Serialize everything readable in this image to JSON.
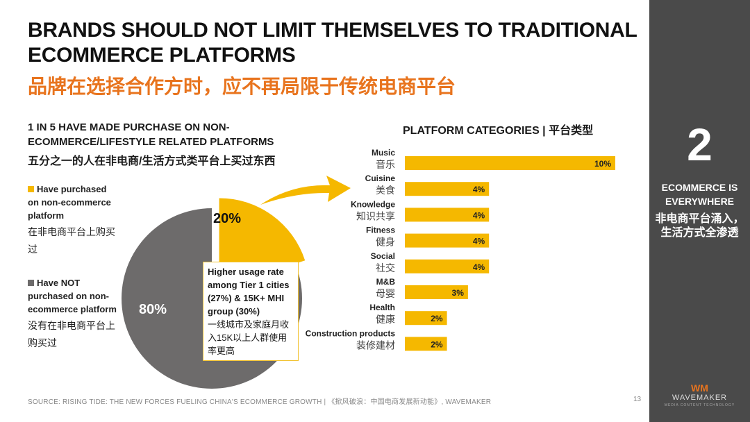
{
  "title": "BRANDS SHOULD NOT LIMIT THEMSELVES TO TRADITIONAL ECOMMERCE PLATFORMS",
  "title_cn": "品牌在选择合作方时，应不再局限于传统电商平台",
  "left": {
    "heading": "1 IN 5 HAVE MADE PURCHASE ON NON-ECOMMERCE/LIFESTYLE RELATED PLATFORMS",
    "heading_cn": "五分之一的人在非电商/生活方式类平台上买过东西",
    "legend": [
      {
        "en": "Have purchased on non-ecommerce platform",
        "cn": "在非电商平台上购买过",
        "color": "#f5b800"
      },
      {
        "en": "Have NOT purchased on non-ecommerce platform",
        "cn": "没有在非电商平台上购买过",
        "color": "#6d6b6b"
      }
    ],
    "callout_en": "Higher usage rate among Tier 1 cities (27%) & 15K+ MHI group (30%)",
    "callout_cn": "一线城市及家庭月收入15K以上人群使用率更高"
  },
  "right": {
    "heading": "PLATFORM CATEGORIES | 平台类型"
  },
  "sidebar": {
    "number": "2",
    "en": "ECOMMERCE IS EVERYWHERE",
    "cn": "非电商平台涌入，生活方式全渗透"
  },
  "logo": {
    "mark": "WM",
    "name": "WAVEMAKER",
    "tagline": "MEDIA  CONTENT  TECHNOLOGY"
  },
  "footer": "SOURCE: RISING TIDE: THE NEW FORCES FUELING CHINA'S ECOMMERCE GROWTH | 《掀风破浪：中国电商发展新动能》, WAVEMAKER",
  "page_number": "13",
  "colors": {
    "accent": "#f5b800",
    "grey": "#6d6b6b",
    "orange_text": "#e8741e",
    "sidebar": "#4a4a4a"
  },
  "chart_data": [
    {
      "type": "pie",
      "categories": [
        "Have purchased on non-ecommerce platform",
        "Have NOT purchased on non-ecommerce platform"
      ],
      "values": [
        20,
        80
      ],
      "labels": [
        "20%",
        "80%"
      ]
    },
    {
      "type": "bar",
      "orientation": "horizontal",
      "categories": [
        "Music",
        "Cuisine",
        "Knowledge",
        "Fitness",
        "Social",
        "M&B",
        "Health",
        "Construction products"
      ],
      "categories_cn": [
        "音乐",
        "美食",
        "知识共享",
        "健身",
        "社交",
        "母婴",
        "健康",
        "装修建材"
      ],
      "values": [
        10,
        4,
        4,
        4,
        4,
        3,
        2,
        2
      ],
      "labels": [
        "10%",
        "4%",
        "4%",
        "4%",
        "4%",
        "3%",
        "2%",
        "2%"
      ]
    }
  ]
}
